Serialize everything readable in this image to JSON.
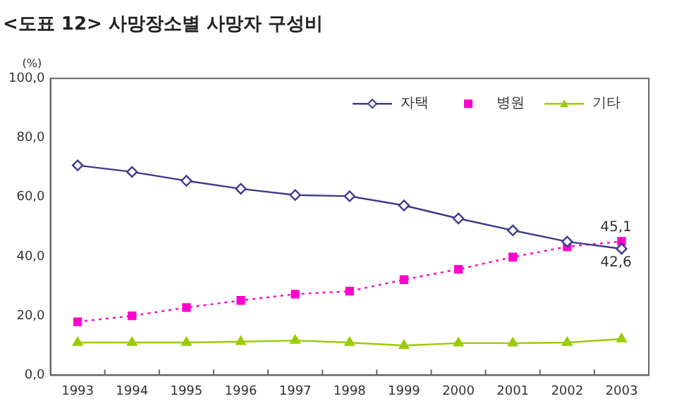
{
  "chart_data": {
    "type": "line",
    "title": "<도표 12> 사망장소별 사망자 구성비",
    "ylabel": "(%)",
    "categories": [
      "1993",
      "1994",
      "1995",
      "1996",
      "1997",
      "1998",
      "1999",
      "2000",
      "2001",
      "2002",
      "2003"
    ],
    "series": [
      {
        "name": "자택",
        "color": "#3c3c8c",
        "marker": "diamond",
        "line_style": "solid",
        "values": [
          70.7,
          68.5,
          65.5,
          62.8,
          60.7,
          60.3,
          57.2,
          52.8,
          48.8,
          45.0,
          42.6
        ],
        "value_labels": [
          null,
          null,
          null,
          null,
          null,
          null,
          null,
          null,
          null,
          null,
          "42,6"
        ]
      },
      {
        "name": "병원",
        "color": "#ff00cc",
        "marker": "square",
        "line_style": "dotted",
        "values": [
          18.0,
          20.0,
          22.8,
          25.2,
          27.3,
          28.3,
          32.2,
          35.7,
          39.8,
          43.3,
          45.1
        ],
        "value_labels": [
          null,
          null,
          null,
          null,
          null,
          null,
          null,
          null,
          null,
          null,
          "45,1"
        ]
      },
      {
        "name": "기타",
        "color": "#99cc00",
        "marker": "triangle",
        "line_style": "solid",
        "values": [
          11.0,
          11.0,
          11.0,
          11.3,
          11.7,
          11.0,
          10.0,
          10.8,
          10.8,
          11.0,
          12.2
        ]
      }
    ],
    "ylim": [
      0,
      100
    ],
    "yticks": [
      {
        "value": 0,
        "label": "0,0"
      },
      {
        "value": 20,
        "label": "20,0"
      },
      {
        "value": 40,
        "label": "40,0"
      },
      {
        "value": 60,
        "label": "60,0"
      },
      {
        "value": 80,
        "label": "80,0"
      },
      {
        "value": 100,
        "label": "100,0"
      }
    ],
    "grid": false,
    "legend": "top right"
  }
}
